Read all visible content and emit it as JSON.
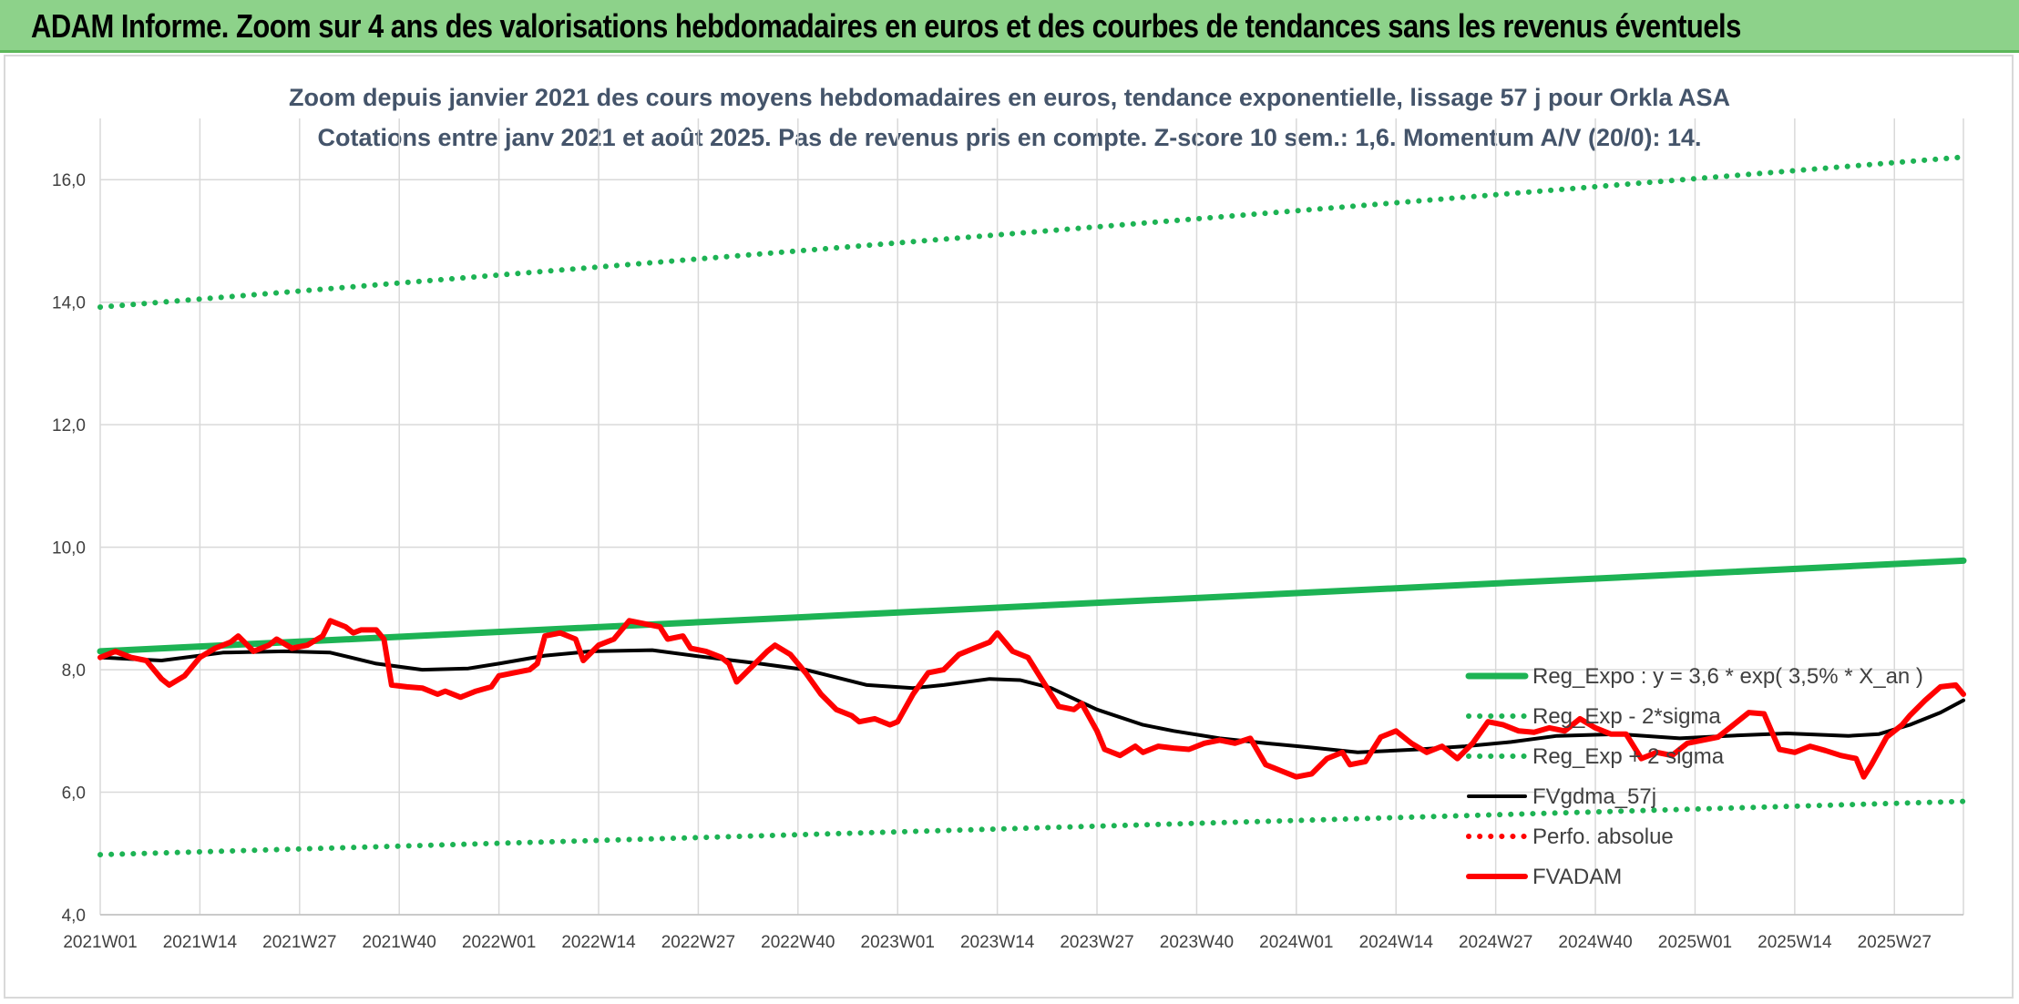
{
  "banner": {
    "title": "ADAM Informe. Zoom sur 4 ans des valorisations hebdomadaires en euros et des courbes de tendances sans les revenus éventuels",
    "background": "#8dd28a"
  },
  "chart_data": {
    "type": "line",
    "title_lines": [
      "Zoom depuis janvier 2021 des cours moyens hebdomadaires en euros, tendance exponentielle, lissage 57 j pour Orkla ASA",
      "Cotations entre janv 2021 et août 2025. Pas de revenus pris en compte. Z-score 10 sem.: 1,6. Momentum A/V (20/0): 14."
    ],
    "xlabel": "",
    "ylabel": "",
    "ylim": [
      4.0,
      17.0
    ],
    "y_ticks": [
      "4,0",
      "6,0",
      "8,0",
      "10,0",
      "12,0",
      "14,0",
      "16,0"
    ],
    "x_ticks": [
      "2021W01",
      "2021W14",
      "2021W27",
      "2021W40",
      "2022W01",
      "2022W14",
      "2022W27",
      "2022W40",
      "2023W01",
      "2023W14",
      "2023W27",
      "2023W40",
      "2024W01",
      "2024W14",
      "2024W27",
      "2024W40",
      "2025W01",
      "2025W14",
      "2025W27"
    ],
    "grid": true,
    "legend_position": "right",
    "series": [
      {
        "name": "Reg_Expo : y = 3,6 * exp( 3,5% *  X_an )",
        "color": "#1db354",
        "style": "solid",
        "values": [
          [
            0,
            8.3
          ],
          [
            243,
            9.78
          ]
        ]
      },
      {
        "name": "Reg_Exp - 2*sigma",
        "color": "#1db354",
        "style": "dotted",
        "values": [
          [
            0,
            4.98
          ],
          [
            243,
            5.85
          ]
        ]
      },
      {
        "name": "Reg_Exp + 2 sigma",
        "color": "#1db354",
        "style": "dotted",
        "values": [
          [
            0,
            13.92
          ],
          [
            243,
            16.37
          ]
        ]
      },
      {
        "name": "FVgdma_57j",
        "color": "#000000",
        "style": "solid",
        "values": [
          [
            0,
            8.2
          ],
          [
            8,
            8.15
          ],
          [
            16,
            8.28
          ],
          [
            24,
            8.3
          ],
          [
            30,
            8.28
          ],
          [
            36,
            8.1
          ],
          [
            42,
            8.0
          ],
          [
            48,
            8.02
          ],
          [
            52,
            8.1
          ],
          [
            58,
            8.23
          ],
          [
            64,
            8.3
          ],
          [
            72,
            8.32
          ],
          [
            78,
            8.22
          ],
          [
            86,
            8.1
          ],
          [
            92,
            8.0
          ],
          [
            100,
            7.75
          ],
          [
            106,
            7.7
          ],
          [
            110,
            7.75
          ],
          [
            116,
            7.85
          ],
          [
            120,
            7.83
          ],
          [
            124,
            7.7
          ],
          [
            130,
            7.35
          ],
          [
            136,
            7.1
          ],
          [
            140,
            7.0
          ],
          [
            146,
            6.88
          ],
          [
            152,
            6.8
          ],
          [
            158,
            6.73
          ],
          [
            164,
            6.65
          ],
          [
            172,
            6.7
          ],
          [
            178,
            6.75
          ],
          [
            184,
            6.82
          ],
          [
            190,
            6.92
          ],
          [
            198,
            6.95
          ],
          [
            206,
            6.88
          ],
          [
            214,
            6.93
          ],
          [
            220,
            6.96
          ],
          [
            228,
            6.92
          ],
          [
            232,
            6.95
          ],
          [
            236,
            7.1
          ],
          [
            240,
            7.3
          ],
          [
            243,
            7.5
          ]
        ]
      },
      {
        "name": "Perfo. absolue",
        "color": "#ff0000",
        "style": "dotted",
        "values": []
      },
      {
        "name": "FVADAM",
        "color": "#ff0000",
        "style": "solid",
        "values": [
          [
            0,
            8.2
          ],
          [
            2,
            8.3
          ],
          [
            4,
            8.2
          ],
          [
            6,
            8.15
          ],
          [
            8,
            7.85
          ],
          [
            9,
            7.75
          ],
          [
            11,
            7.9
          ],
          [
            13,
            8.2
          ],
          [
            15,
            8.35
          ],
          [
            17,
            8.45
          ],
          [
            18,
            8.55
          ],
          [
            20,
            8.3
          ],
          [
            22,
            8.4
          ],
          [
            23,
            8.5
          ],
          [
            25,
            8.35
          ],
          [
            27,
            8.4
          ],
          [
            29,
            8.55
          ],
          [
            30,
            8.8
          ],
          [
            32,
            8.7
          ],
          [
            33,
            8.6
          ],
          [
            34,
            8.65
          ],
          [
            36,
            8.65
          ],
          [
            37,
            8.5
          ],
          [
            38,
            7.75
          ],
          [
            40,
            7.72
          ],
          [
            42,
            7.7
          ],
          [
            44,
            7.6
          ],
          [
            45,
            7.65
          ],
          [
            47,
            7.55
          ],
          [
            49,
            7.65
          ],
          [
            51,
            7.72
          ],
          [
            52,
            7.9
          ],
          [
            54,
            7.95
          ],
          [
            56,
            8.0
          ],
          [
            57,
            8.1
          ],
          [
            58,
            8.55
          ],
          [
            60,
            8.6
          ],
          [
            62,
            8.5
          ],
          [
            63,
            8.15
          ],
          [
            65,
            8.4
          ],
          [
            67,
            8.5
          ],
          [
            69,
            8.8
          ],
          [
            71,
            8.75
          ],
          [
            73,
            8.7
          ],
          [
            74,
            8.5
          ],
          [
            76,
            8.55
          ],
          [
            77,
            8.35
          ],
          [
            79,
            8.3
          ],
          [
            81,
            8.2
          ],
          [
            82,
            8.1
          ],
          [
            83,
            7.8
          ],
          [
            85,
            8.05
          ],
          [
            87,
            8.3
          ],
          [
            88,
            8.4
          ],
          [
            90,
            8.25
          ],
          [
            92,
            7.95
          ],
          [
            94,
            7.6
          ],
          [
            96,
            7.35
          ],
          [
            98,
            7.25
          ],
          [
            99,
            7.15
          ],
          [
            101,
            7.2
          ],
          [
            103,
            7.1
          ],
          [
            104,
            7.15
          ],
          [
            106,
            7.6
          ],
          [
            108,
            7.95
          ],
          [
            110,
            8.0
          ],
          [
            112,
            8.25
          ],
          [
            114,
            8.35
          ],
          [
            116,
            8.45
          ],
          [
            117,
            8.6
          ],
          [
            119,
            8.3
          ],
          [
            121,
            8.2
          ],
          [
            123,
            7.8
          ],
          [
            125,
            7.4
          ],
          [
            127,
            7.35
          ],
          [
            128,
            7.45
          ],
          [
            130,
            7.0
          ],
          [
            131,
            6.7
          ],
          [
            133,
            6.6
          ],
          [
            135,
            6.75
          ],
          [
            136,
            6.65
          ],
          [
            138,
            6.75
          ],
          [
            140,
            6.72
          ],
          [
            142,
            6.7
          ],
          [
            144,
            6.8
          ],
          [
            146,
            6.85
          ],
          [
            148,
            6.8
          ],
          [
            150,
            6.88
          ],
          [
            152,
            6.45
          ],
          [
            154,
            6.35
          ],
          [
            156,
            6.25
          ],
          [
            158,
            6.3
          ],
          [
            160,
            6.55
          ],
          [
            162,
            6.65
          ],
          [
            163,
            6.45
          ],
          [
            165,
            6.5
          ],
          [
            167,
            6.9
          ],
          [
            169,
            7.0
          ],
          [
            171,
            6.8
          ],
          [
            173,
            6.65
          ],
          [
            175,
            6.75
          ],
          [
            177,
            6.55
          ],
          [
            179,
            6.8
          ],
          [
            181,
            7.15
          ],
          [
            183,
            7.1
          ],
          [
            185,
            7.0
          ],
          [
            187,
            6.98
          ],
          [
            189,
            7.05
          ],
          [
            191,
            7.0
          ],
          [
            193,
            7.2
          ],
          [
            195,
            7.05
          ],
          [
            197,
            6.95
          ],
          [
            199,
            6.95
          ],
          [
            201,
            6.55
          ],
          [
            203,
            6.65
          ],
          [
            205,
            6.6
          ],
          [
            207,
            6.8
          ],
          [
            209,
            6.85
          ],
          [
            211,
            6.9
          ],
          [
            213,
            7.1
          ],
          [
            215,
            7.3
          ],
          [
            217,
            7.28
          ],
          [
            219,
            6.7
          ],
          [
            221,
            6.65
          ],
          [
            223,
            6.75
          ],
          [
            225,
            6.68
          ],
          [
            227,
            6.6
          ],
          [
            229,
            6.55
          ],
          [
            230,
            6.25
          ],
          [
            231,
            6.45
          ],
          [
            233,
            6.9
          ],
          [
            235,
            7.1
          ],
          [
            236,
            7.25
          ],
          [
            238,
            7.5
          ],
          [
            240,
            7.72
          ],
          [
            242,
            7.75
          ],
          [
            243,
            7.6
          ]
        ]
      }
    ]
  }
}
